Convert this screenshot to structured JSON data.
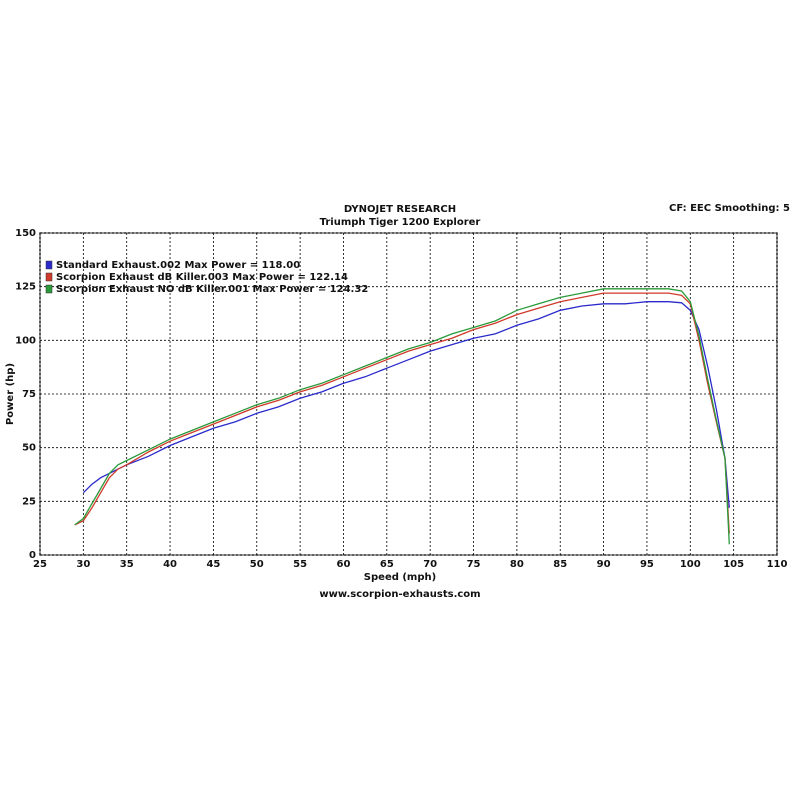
{
  "chart_data": {
    "type": "line",
    "title": "DYNOJET RESEARCH",
    "subtitle": "Triumph Tiger 1200 Explorer",
    "annotation": "CF: EEC  Smoothing: 5",
    "footer": "www.scorpion-exhausts.com",
    "x_label": "Speed (mph)",
    "y_label": "Power (hp)",
    "x": [
      29,
      30,
      31,
      32,
      33,
      34,
      35,
      37.5,
      40,
      42.5,
      45,
      47.5,
      50,
      52.5,
      55,
      57.5,
      60,
      62.5,
      65,
      67.5,
      70,
      72.5,
      75,
      77.5,
      80,
      82.5,
      85,
      87.5,
      90,
      92.5,
      95,
      97.5,
      99,
      100,
      101,
      102,
      103,
      104,
      104.5
    ],
    "series": [
      {
        "name": "Standard Exhaust.002 Max Power = 118.00",
        "color": "#2a2acc",
        "values": [
          null,
          29,
          33,
          36,
          38,
          40,
          42,
          46,
          51,
          55,
          59,
          62,
          66,
          69,
          73,
          76,
          80,
          83,
          87,
          91,
          95,
          98,
          101,
          103,
          107,
          110,
          114,
          116,
          117,
          117,
          118,
          118,
          117.5,
          114,
          105,
          88,
          68,
          45,
          22
        ]
      },
      {
        "name": "Scorpion Exhaust dB Killer.003 Max Power = 122.14",
        "color": "#d03a2a",
        "values": [
          14,
          16,
          22,
          29,
          36,
          40,
          42,
          48,
          53,
          57,
          61,
          65,
          69,
          72,
          76,
          79,
          83,
          87,
          91,
          95,
          98,
          101,
          105,
          108,
          112,
          115,
          118,
          120,
          122,
          122,
          122,
          122,
          121,
          117,
          100,
          80,
          62,
          45,
          10
        ]
      },
      {
        "name": "Scorpion Exhaust NO dB Killer.001 Max Power = 124.32",
        "color": "#2a9a3a",
        "values": [
          14,
          17,
          24,
          31,
          38,
          42,
          44,
          49,
          54,
          58,
          62,
          66,
          70,
          73,
          77,
          80,
          84,
          88,
          92,
          96,
          99,
          103,
          106,
          109,
          114,
          117,
          120,
          122,
          124,
          124,
          124,
          124,
          123,
          118,
          102,
          82,
          63,
          45,
          5
        ]
      }
    ],
    "xlim": [
      25,
      110
    ],
    "xticks": [
      25,
      30,
      35,
      40,
      45,
      50,
      55,
      60,
      65,
      70,
      75,
      80,
      85,
      90,
      95,
      100,
      105,
      110
    ],
    "ylim": [
      0,
      150
    ],
    "yticks": [
      0,
      25,
      50,
      75,
      100,
      125,
      150
    ],
    "grid": true
  }
}
